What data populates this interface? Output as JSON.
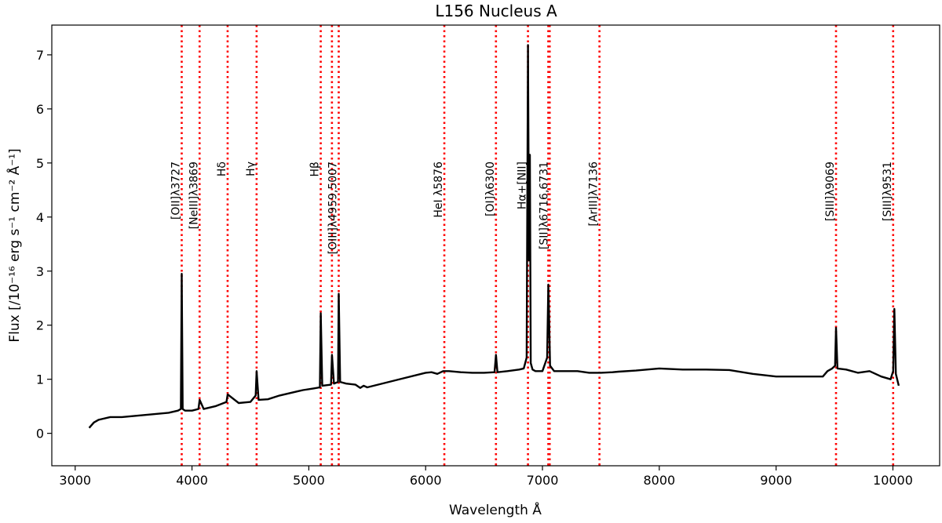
{
  "chart_data": {
    "type": "line",
    "title": "L156 Nucleus A",
    "xlabel": "Wavelength Å",
    "ylabel": "Flux  [/10⁻¹⁶ erg s⁻¹ cm⁻² Å⁻¹]",
    "xlim": [
      2800,
      10400
    ],
    "ylim": [
      -0.6,
      7.55
    ],
    "xticks": [
      3000,
      4000,
      5000,
      6000,
      7000,
      8000,
      9000,
      10000
    ],
    "yticks": [
      0,
      1,
      2,
      3,
      4,
      5,
      6,
      7
    ],
    "grid": false,
    "series": [
      {
        "color": "#000000",
        "x": [
          3120,
          3160,
          3200,
          3300,
          3400,
          3500,
          3600,
          3700,
          3800,
          3880,
          3905,
          3912,
          3920,
          3940,
          4000,
          4055,
          4065,
          4100,
          4200,
          4295,
          4305,
          4400,
          4500,
          4545,
          4553,
          4570,
          4650,
          4750,
          4850,
          4950,
          5040,
          5095,
          5102,
          5115,
          5190,
          5198,
          5215,
          5250,
          5256,
          5268,
          5320,
          5400,
          5440,
          5470,
          5500,
          6000,
          6050,
          6100,
          6150,
          6200,
          6300,
          6400,
          6500,
          6590,
          6602,
          6615,
          6700,
          6800,
          6840,
          6865,
          6876,
          6885,
          6892,
          6900,
          6915,
          6940,
          7000,
          7040,
          7050,
          7056,
          7065,
          7100,
          7200,
          7300,
          7400,
          7500,
          7600,
          7650,
          7800,
          8000,
          8200,
          8400,
          8600,
          8800,
          9000,
          9040,
          9400,
          9440,
          9480,
          9505,
          9513,
          9525,
          9600,
          9700,
          9800,
          9900,
          9980,
          10002,
          10012,
          10025,
          10050
        ],
        "y": [
          0.1,
          0.2,
          0.25,
          0.3,
          0.3,
          0.32,
          0.34,
          0.36,
          0.38,
          0.42,
          0.45,
          2.95,
          0.45,
          0.42,
          0.42,
          0.45,
          0.62,
          0.45,
          0.5,
          0.58,
          0.72,
          0.56,
          0.58,
          0.7,
          1.15,
          0.62,
          0.63,
          0.7,
          0.75,
          0.8,
          0.83,
          0.85,
          2.22,
          0.88,
          0.9,
          1.45,
          0.92,
          0.95,
          2.58,
          0.95,
          0.92,
          0.9,
          0.84,
          0.88,
          0.85,
          1.12,
          1.13,
          1.1,
          1.15,
          1.15,
          1.13,
          1.12,
          1.12,
          1.13,
          1.45,
          1.13,
          1.15,
          1.18,
          1.2,
          1.4,
          7.18,
          3.2,
          5.15,
          1.3,
          1.18,
          1.15,
          1.15,
          1.4,
          2.75,
          2.2,
          1.25,
          1.15,
          1.15,
          1.15,
          1.12,
          1.12,
          1.13,
          1.14,
          1.16,
          1.2,
          1.18,
          1.18,
          1.17,
          1.1,
          1.05,
          1.05,
          1.05,
          1.15,
          1.2,
          1.25,
          1.95,
          1.2,
          1.18,
          1.12,
          1.15,
          1.05,
          1.0,
          1.15,
          2.3,
          1.1,
          0.88
        ]
      }
    ],
    "annotations": [
      {
        "x": 3912,
        "label": "[OII]λ3727",
        "color": "#ff0000"
      },
      {
        "x": 4065,
        "label": "[NeIII]λ3869",
        "color": "#ff0000"
      },
      {
        "x": 4305,
        "label": "Hδ",
        "color": "#ff0000"
      },
      {
        "x": 4553,
        "label": "Hγ",
        "color": "#ff0000"
      },
      {
        "x": 5102,
        "label": "Hβ",
        "color": "#ff0000"
      },
      {
        "x": 5198,
        "label": "",
        "color": "#ff0000"
      },
      {
        "x": 5256,
        "label": "[OIII]λ4959,5007",
        "color": "#ff0000"
      },
      {
        "x": 6160,
        "label": "HeI λ5876",
        "color": "#ff0000"
      },
      {
        "x": 6602,
        "label": "[OI]λ6300",
        "color": "#ff0000"
      },
      {
        "x": 6876,
        "label": "Hα+[NII]",
        "color": "#ff0000"
      },
      {
        "x": 7050,
        "label": "",
        "color": "#ff0000"
      },
      {
        "x": 7062,
        "label": "[SII]λ6716,6731",
        "color": "#ff0000"
      },
      {
        "x": 7488,
        "label": "[ArIII]λ7136",
        "color": "#ff0000"
      },
      {
        "x": 9513,
        "label": "[SIII]λ9069",
        "color": "#ff0000"
      },
      {
        "x": 10002,
        "label": "[SIII]λ9531",
        "color": "#ff0000"
      }
    ]
  }
}
